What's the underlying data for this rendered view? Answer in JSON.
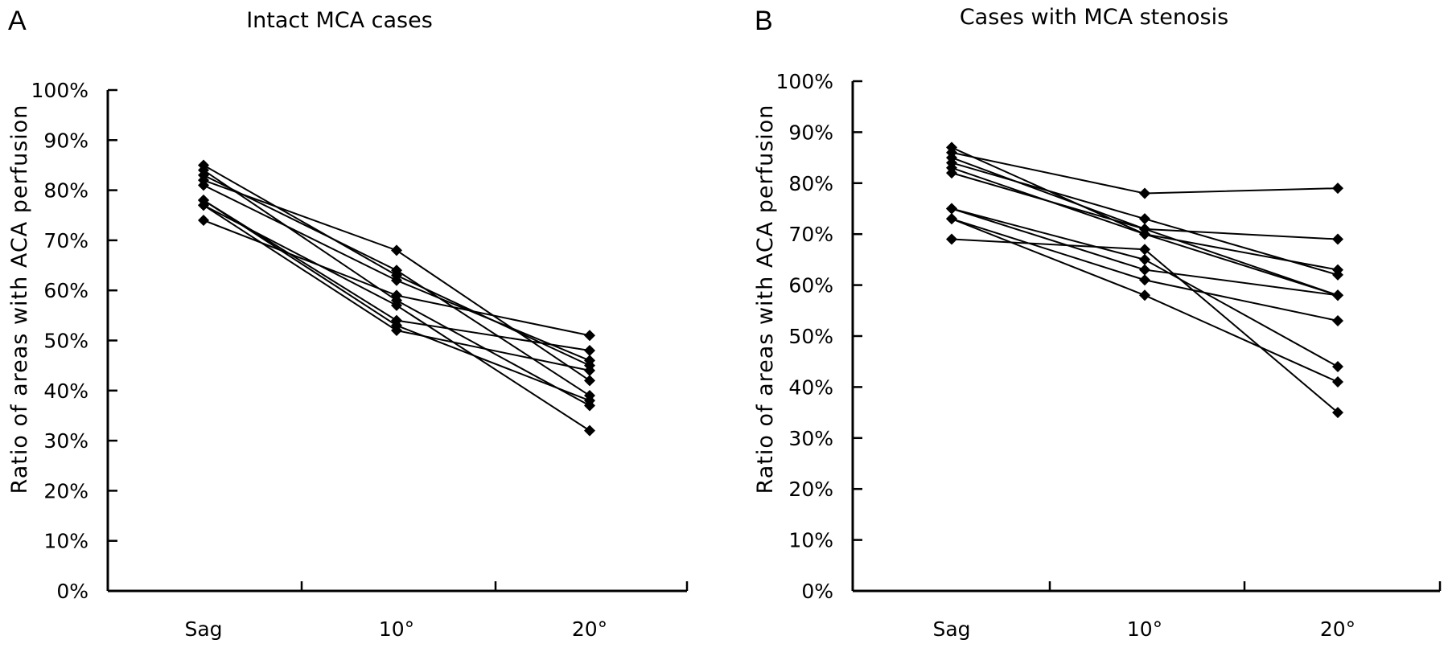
{
  "chart_data": [
    {
      "type": "line",
      "panel_label": "A",
      "title": "Intact MCA cases",
      "ylabel": "Ratio of areas with ACA perfusion",
      "xlabel": "",
      "categories": [
        "Sag",
        "10°",
        "20°"
      ],
      "yticks": [
        "0%",
        "10%",
        "20%",
        "30%",
        "40%",
        "50%",
        "60%",
        "70%",
        "80%",
        "90%",
        "100%"
      ],
      "ylim": [
        0,
        100
      ],
      "marker": "diamond",
      "line_color": "#000000",
      "grid": false,
      "series": [
        {
          "values": [
            85,
            63,
            45
          ]
        },
        {
          "values": [
            84,
            58,
            37
          ]
        },
        {
          "values": [
            83,
            64,
            39
          ]
        },
        {
          "values": [
            82,
            68,
            42
          ]
        },
        {
          "values": [
            81,
            62,
            46
          ]
        },
        {
          "values": [
            78,
            54,
            48
          ]
        },
        {
          "values": [
            77,
            52,
            44
          ]
        },
        {
          "values": [
            77,
            57,
            32
          ]
        },
        {
          "values": [
            74,
            59,
            51
          ]
        },
        {
          "values": [
            78,
            53,
            38
          ]
        }
      ]
    },
    {
      "type": "line",
      "panel_label": "B",
      "title": "Cases with MCA stenosis",
      "ylabel": "Ratio of areas with ACA perfusion",
      "xlabel": "",
      "categories": [
        "Sag",
        "10°",
        "20°"
      ],
      "yticks": [
        "0%",
        "10%",
        "20%",
        "30%",
        "40%",
        "50%",
        "60%",
        "70%",
        "80%",
        "90%",
        "100%"
      ],
      "ylim": [
        0,
        100
      ],
      "marker": "diamond",
      "line_color": "#000000",
      "grid": false,
      "series": [
        {
          "values": [
            87,
            70,
            58
          ]
        },
        {
          "values": [
            86,
            78,
            79
          ]
        },
        {
          "values": [
            85,
            71,
            69
          ]
        },
        {
          "values": [
            84,
            73,
            62
          ]
        },
        {
          "values": [
            83,
            70,
            63
          ]
        },
        {
          "values": [
            82,
            71,
            58
          ]
        },
        {
          "values": [
            75,
            65,
            44
          ]
        },
        {
          "values": [
            75,
            63,
            58
          ]
        },
        {
          "values": [
            73,
            61,
            53
          ]
        },
        {
          "values": [
            73,
            58,
            41
          ]
        },
        {
          "values": [
            69,
            67,
            35
          ]
        }
      ]
    }
  ]
}
